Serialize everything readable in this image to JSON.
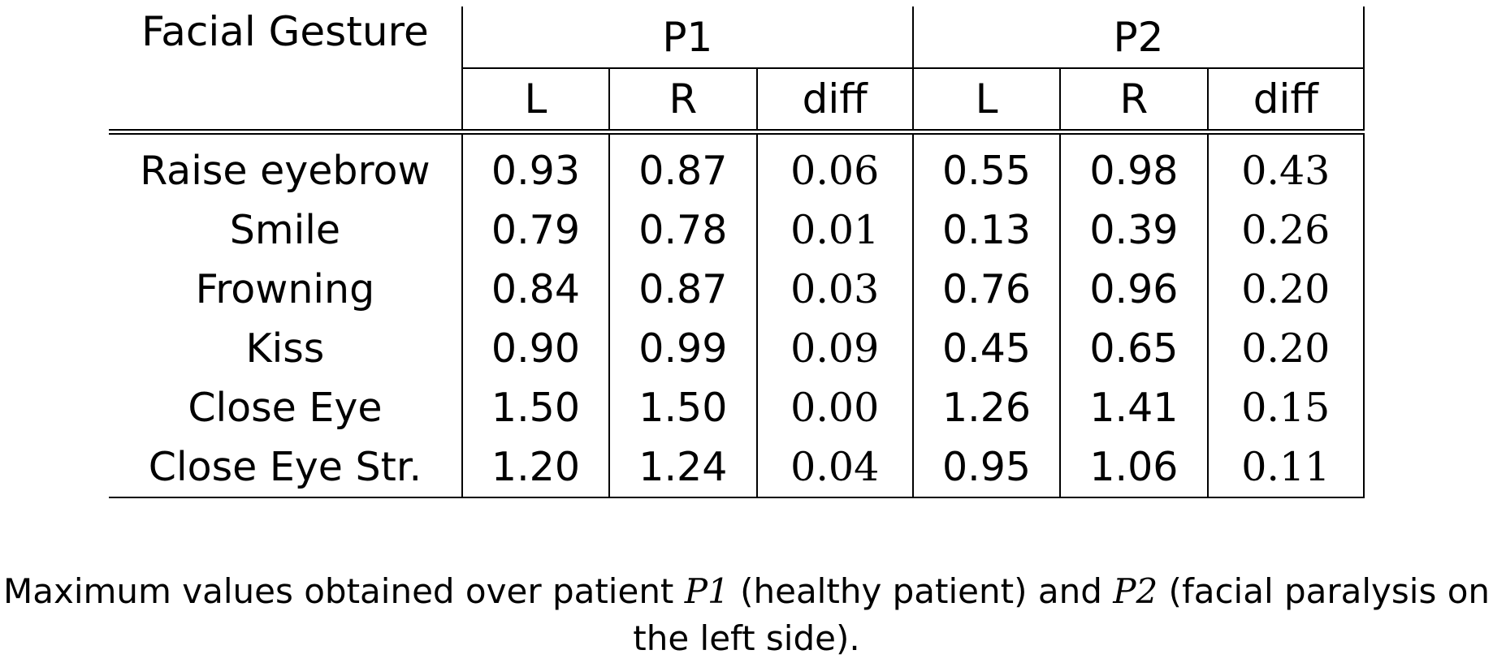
{
  "table": {
    "header": {
      "gesture_label": "Facial Gesture",
      "groups": [
        "P1",
        "P2"
      ],
      "subcolumns": [
        "L",
        "R",
        "diff",
        "L",
        "R",
        "diff"
      ]
    },
    "rows": [
      {
        "gesture": "Raise eyebrow",
        "p1_l": "0.93",
        "p1_r": "0.87",
        "p1_diff": "0.06",
        "p2_l": "0.55",
        "p2_r": "0.98",
        "p2_diff": "0.43"
      },
      {
        "gesture": "Smile",
        "p1_l": "0.79",
        "p1_r": "0.78",
        "p1_diff": "0.01",
        "p2_l": "0.13",
        "p2_r": "0.39",
        "p2_diff": "0.26"
      },
      {
        "gesture": "Frowning",
        "p1_l": "0.84",
        "p1_r": "0.87",
        "p1_diff": "0.03",
        "p2_l": "0.76",
        "p2_r": "0.96",
        "p2_diff": "0.20"
      },
      {
        "gesture": "Kiss",
        "p1_l": "0.90",
        "p1_r": "0.99",
        "p1_diff": "0.09",
        "p2_l": "0.45",
        "p2_r": "0.65",
        "p2_diff": "0.20"
      },
      {
        "gesture": "Close Eye",
        "p1_l": "1.50",
        "p1_r": "1.50",
        "p1_diff": "0.00",
        "p2_l": "1.26",
        "p2_r": "1.41",
        "p2_diff": "0.15"
      },
      {
        "gesture": "Close Eye Str.",
        "p1_l": "1.20",
        "p1_r": "1.24",
        "p1_diff": "0.04",
        "p2_l": "0.95",
        "p2_r": "1.06",
        "p2_diff": "0.11"
      }
    ]
  },
  "caption": {
    "part1": "Maximum values obtained over patient ",
    "math1": "P1",
    "part2": " (healthy patient) and ",
    "math2": "P2",
    "part3": " (facial paralysis on the left side)."
  }
}
